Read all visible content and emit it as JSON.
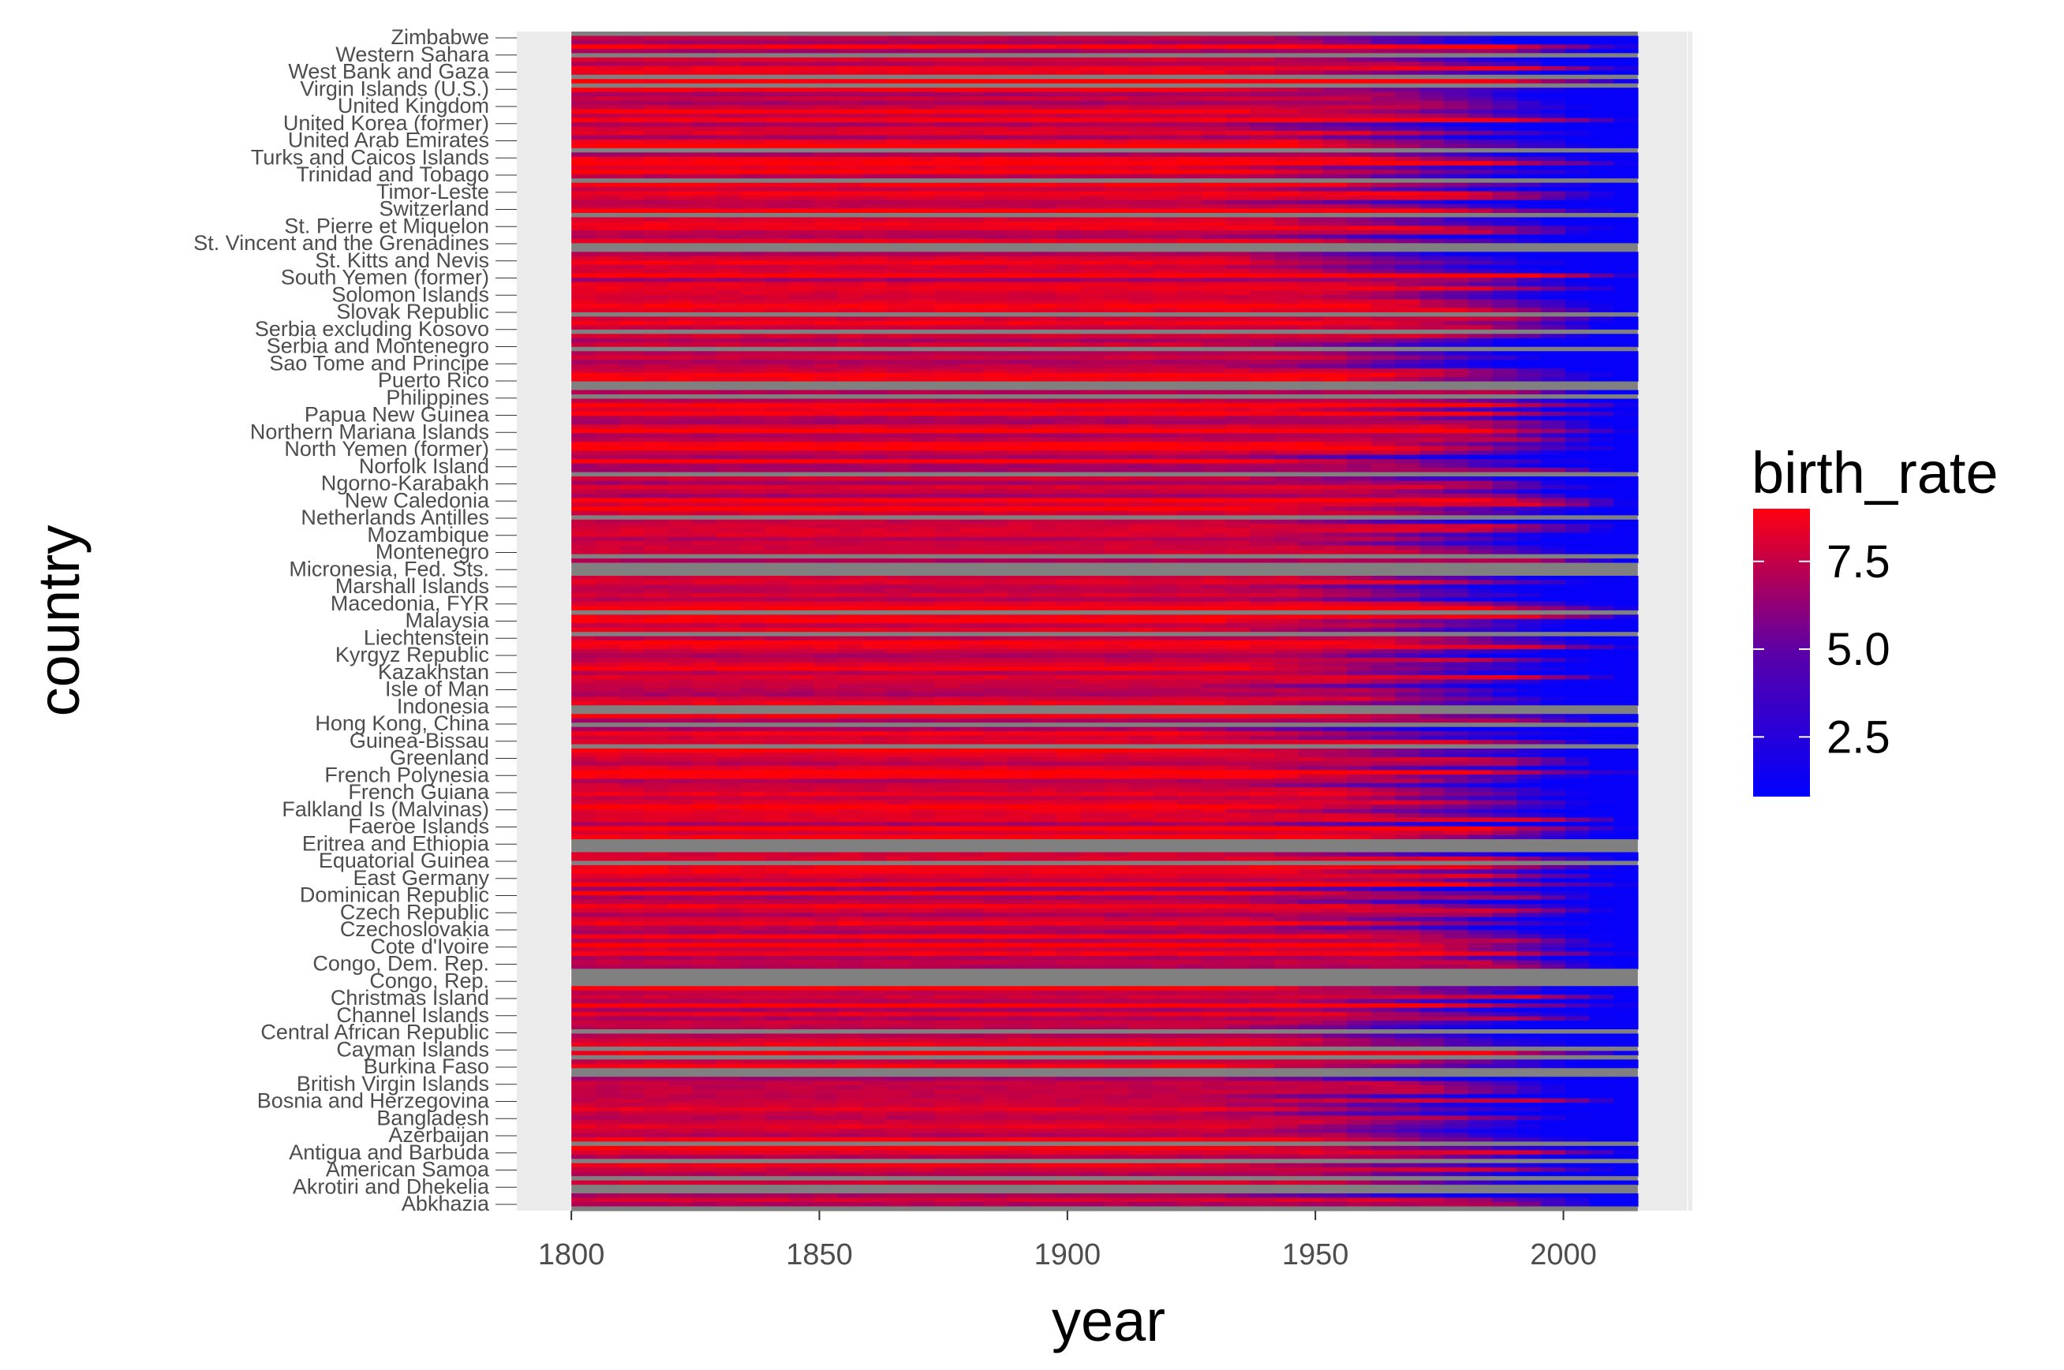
{
  "chart_data": {
    "type": "heatmap",
    "xlabel": "year",
    "ylabel": "country",
    "x_ticks": [
      1800,
      1850,
      1900,
      1950,
      2000
    ],
    "x_range": [
      1800,
      2015
    ],
    "xlim": [
      1789,
      2026
    ],
    "grid": "on",
    "legend": {
      "title": "birth_rate",
      "placement": "right",
      "ticks": [
        "7.5",
        "5.0",
        "2.5"
      ],
      "tick_values": [
        7.5,
        5.0,
        2.5
      ],
      "range": [
        0.8,
        9.0
      ],
      "low_color": "#0000ff",
      "high_color": "#ff0000",
      "na_color": "#808080"
    },
    "y_tick_labels_legible": [
      "Zimbabwe",
      "Western Sahara",
      "West Bank and Gaza",
      "Virgin Islands (U.S.)",
      "United Kingdom",
      "United Korea (former)",
      "United Arab Emirates",
      "Turks and Caicos Islands",
      "Trinidad and Tobago",
      "Timor-Leste",
      "Switzerland",
      "St. Pierre et Miquelon",
      "St. Vincent and the Grenadines",
      "St. Kitts and Nevis",
      "South Yemen (former)",
      "Solomon Islands",
      "Slovak Republic",
      "Serbia excluding Kosovo",
      "Serbia and Montenegro",
      "Sao Tome and Principe",
      "Puerto Rico",
      "Philippines",
      "Papua New Guinea",
      "Northern Mariana Islands",
      "North Yemen (former)",
      "Norfolk Island",
      "Ngorno-Karabakh",
      "New Caledonia",
      "Netherlands Antilles",
      "Mozambique",
      "Montenegro",
      "Micronesia, Fed. Sts.",
      "Marshall Islands",
      "Macedonia, FYR",
      "Malaysia",
      "Liechtenstein",
      "Kyrgyz Republic",
      "Kazakhstan",
      "Isle of Man",
      "Indonesia",
      "Hong Kong, China",
      "Guinea-Bissau",
      "Greenland",
      "French Polynesia",
      "French Guiana",
      "Falkland Is (Malvinas)",
      "Faeroe Islands",
      "Eritrea and Ethiopia",
      "Equatorial Guinea",
      "East Germany",
      "Dominican Republic",
      "Czech Republic",
      "Czechoslovakia",
      "Cote d'Ivoire",
      "Congo, Dem. Rep.",
      "Congo, Rep.",
      "Christmas Island",
      "Channel Islands",
      "Central African Republic",
      "Cayman Islands",
      "Burkina Faso",
      "British Virgin Islands",
      "Bosnia and Herzegovina",
      "Bangladesh",
      "Azerbaijan",
      "Antigua and Barbuda",
      "American Samoa",
      "Akrotiri and Dhekelia",
      "Abkhazia"
    ],
    "description": "Per-country annual birth_rate tiles from 1800 to 2015; high values (red) dominate before ~1950, low values (blue) dominate after ~1990; rows with missing data drawn grey."
  }
}
